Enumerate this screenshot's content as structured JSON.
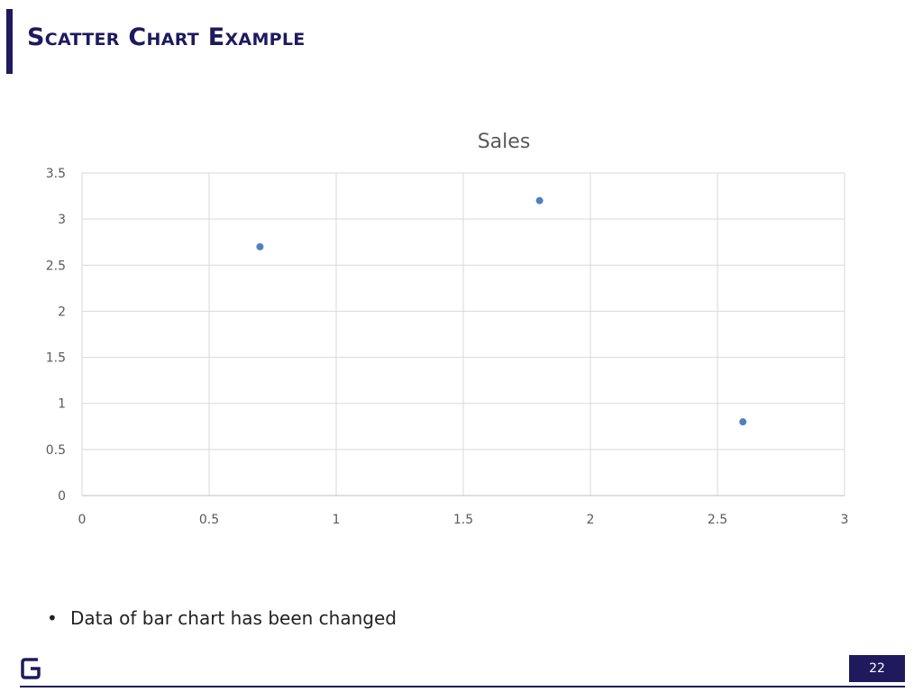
{
  "slide": {
    "title": "Scatter Chart Example",
    "bullet": "Data of bar chart has been changed",
    "bullet_symbol": "•",
    "page_number": "22",
    "brand_color": "#1f1a5e",
    "logo_icon": "g-logo-icon"
  },
  "chart_data": {
    "type": "scatter",
    "title": "Sales",
    "xlabel": "",
    "ylabel": "",
    "xlim": [
      0,
      3
    ],
    "ylim": [
      0,
      3.5
    ],
    "x_ticks": [
      "0",
      "0.5",
      "1",
      "1.5",
      "2",
      "2.5",
      "3"
    ],
    "y_ticks": [
      "0",
      "0.5",
      "1",
      "1.5",
      "2",
      "2.5",
      "3",
      "3.5"
    ],
    "grid": true,
    "legend": "none",
    "series": [
      {
        "color": "#4f81bd",
        "points": [
          {
            "x": 0.7,
            "y": 2.7
          },
          {
            "x": 1.8,
            "y": 3.2
          },
          {
            "x": 2.6,
            "y": 0.8
          }
        ]
      }
    ]
  }
}
